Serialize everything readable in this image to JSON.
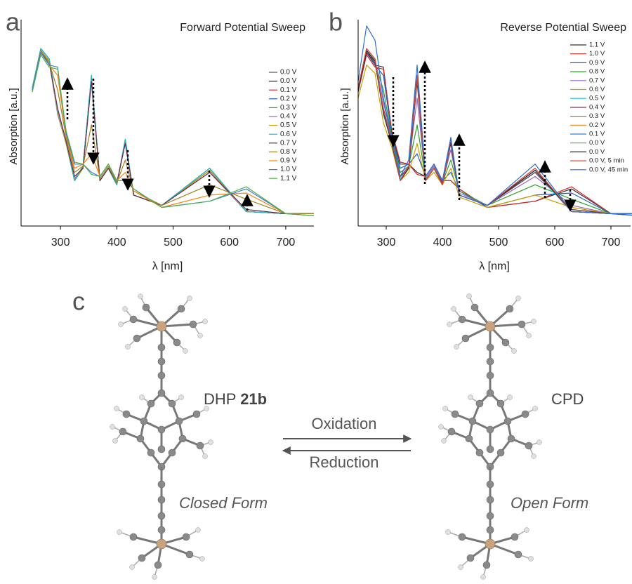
{
  "chart_data": [
    {
      "type": "line",
      "panel_label": "a",
      "title": "Forward Potential Sweep",
      "xlabel": "λ [nm]",
      "ylabel": "Absorption [a.u.]",
      "xlim": [
        230,
        750
      ],
      "ylim": [
        0,
        1
      ],
      "xticks": [
        300,
        400,
        500,
        600,
        700
      ],
      "x": [
        250,
        265,
        280,
        295,
        310,
        325,
        340,
        355,
        370,
        385,
        400,
        415,
        430,
        480,
        565,
        630,
        700,
        750
      ],
      "series": [
        {
          "name": "0.0 V",
          "color": "#555555",
          "values": [
            0.66,
            0.85,
            0.8,
            0.55,
            0.4,
            0.22,
            0.28,
            0.72,
            0.22,
            0.28,
            0.2,
            0.41,
            0.15,
            0.1,
            0.27,
            0.07,
            0.06,
            0.06
          ]
        },
        {
          "name": "0.0 V",
          "color": "#222222",
          "values": [
            0.67,
            0.86,
            0.81,
            0.56,
            0.41,
            0.22,
            0.29,
            0.73,
            0.22,
            0.28,
            0.2,
            0.42,
            0.15,
            0.1,
            0.28,
            0.07,
            0.06,
            0.06
          ]
        },
        {
          "name": "0.1 V",
          "color": "#d62728",
          "values": [
            0.66,
            0.85,
            0.8,
            0.55,
            0.4,
            0.22,
            0.28,
            0.72,
            0.22,
            0.28,
            0.2,
            0.41,
            0.15,
            0.1,
            0.27,
            0.07,
            0.06,
            0.06
          ]
        },
        {
          "name": "0.2 V",
          "color": "#1f5fbf",
          "values": [
            0.66,
            0.85,
            0.8,
            0.55,
            0.4,
            0.22,
            0.28,
            0.72,
            0.22,
            0.28,
            0.2,
            0.41,
            0.15,
            0.1,
            0.27,
            0.07,
            0.06,
            0.06
          ]
        },
        {
          "name": "0.3 V",
          "color": "#2ca02c",
          "values": [
            0.66,
            0.85,
            0.8,
            0.55,
            0.4,
            0.22,
            0.28,
            0.72,
            0.22,
            0.28,
            0.2,
            0.41,
            0.15,
            0.1,
            0.27,
            0.07,
            0.06,
            0.06
          ]
        },
        {
          "name": "0.4 V",
          "color": "#9467bd",
          "values": [
            0.65,
            0.85,
            0.8,
            0.54,
            0.4,
            0.23,
            0.28,
            0.71,
            0.22,
            0.28,
            0.21,
            0.4,
            0.15,
            0.1,
            0.26,
            0.07,
            0.06,
            0.06
          ]
        },
        {
          "name": "0.5 V",
          "color": "#c8a000",
          "values": [
            0.66,
            0.85,
            0.8,
            0.55,
            0.4,
            0.22,
            0.28,
            0.72,
            0.22,
            0.28,
            0.2,
            0.41,
            0.15,
            0.1,
            0.27,
            0.07,
            0.06,
            0.06
          ]
        },
        {
          "name": "0.6 V",
          "color": "#17becf",
          "values": [
            0.67,
            0.86,
            0.81,
            0.56,
            0.41,
            0.22,
            0.29,
            0.73,
            0.22,
            0.28,
            0.2,
            0.42,
            0.15,
            0.1,
            0.28,
            0.07,
            0.06,
            0.06
          ]
        },
        {
          "name": "0.7 V",
          "color": "#6b2d4f",
          "values": [
            0.65,
            0.84,
            0.79,
            0.57,
            0.41,
            0.24,
            0.28,
            0.7,
            0.22,
            0.28,
            0.21,
            0.4,
            0.15,
            0.1,
            0.26,
            0.08,
            0.06,
            0.06
          ]
        },
        {
          "name": "0.8 V",
          "color": "#a08020",
          "values": [
            0.66,
            0.85,
            0.79,
            0.66,
            0.43,
            0.26,
            0.29,
            0.49,
            0.23,
            0.29,
            0.21,
            0.32,
            0.17,
            0.1,
            0.2,
            0.13,
            0.06,
            0.06
          ]
        },
        {
          "name": "0.9 V",
          "color": "#ff7f0e",
          "values": [
            0.66,
            0.84,
            0.78,
            0.73,
            0.44,
            0.28,
            0.3,
            0.35,
            0.24,
            0.3,
            0.22,
            0.26,
            0.17,
            0.09,
            0.15,
            0.16,
            0.06,
            0.05
          ]
        },
        {
          "name": "1.0 V",
          "color": "#3a7bd5",
          "values": [
            0.66,
            0.84,
            0.78,
            0.77,
            0.45,
            0.3,
            0.3,
            0.26,
            0.24,
            0.3,
            0.22,
            0.22,
            0.18,
            0.09,
            0.12,
            0.18,
            0.06,
            0.05
          ]
        },
        {
          "name": "1.1 V",
          "color": "#4caf50",
          "values": [
            0.65,
            0.83,
            0.77,
            0.76,
            0.46,
            0.31,
            0.3,
            0.25,
            0.24,
            0.3,
            0.22,
            0.22,
            0.18,
            0.09,
            0.12,
            0.19,
            0.06,
            0.05
          ]
        }
      ]
    },
    {
      "type": "line",
      "panel_label": "b",
      "title": "Reverse Potential Sweep",
      "xlabel": "λ [nm]",
      "ylabel": "Absorption [a.u.]",
      "xlim": [
        250,
        735
      ],
      "ylim": [
        0,
        1
      ],
      "xticks": [
        300,
        400,
        500,
        600,
        700
      ],
      "x": [
        250,
        265,
        280,
        295,
        310,
        325,
        340,
        355,
        370,
        385,
        400,
        415,
        430,
        480,
        565,
        630,
        700,
        750
      ],
      "series": [
        {
          "name": "1.1 V",
          "color": "#333333",
          "values": [
            0.66,
            0.84,
            0.78,
            0.77,
            0.45,
            0.3,
            0.3,
            0.26,
            0.24,
            0.3,
            0.22,
            0.22,
            0.18,
            0.09,
            0.12,
            0.18,
            0.06,
            0.05
          ]
        },
        {
          "name": "1.0 V",
          "color": "#d62728",
          "values": [
            0.65,
            0.83,
            0.77,
            0.76,
            0.46,
            0.31,
            0.3,
            0.25,
            0.24,
            0.3,
            0.22,
            0.22,
            0.18,
            0.09,
            0.12,
            0.19,
            0.06,
            0.05
          ]
        },
        {
          "name": "0.9 V",
          "color": "#1f5fbf",
          "values": [
            0.66,
            0.84,
            0.78,
            0.73,
            0.44,
            0.28,
            0.3,
            0.35,
            0.24,
            0.3,
            0.22,
            0.26,
            0.17,
            0.09,
            0.15,
            0.16,
            0.06,
            0.05
          ]
        },
        {
          "name": "0.8 V",
          "color": "#2ca02c",
          "values": [
            0.66,
            0.85,
            0.79,
            0.66,
            0.43,
            0.26,
            0.29,
            0.49,
            0.23,
            0.29,
            0.21,
            0.32,
            0.17,
            0.1,
            0.2,
            0.13,
            0.06,
            0.06
          ]
        },
        {
          "name": "0.7 V",
          "color": "#9467bd",
          "values": [
            0.66,
            0.86,
            0.81,
            0.6,
            0.42,
            0.24,
            0.29,
            0.62,
            0.23,
            0.29,
            0.21,
            0.37,
            0.16,
            0.1,
            0.24,
            0.1,
            0.06,
            0.06
          ]
        },
        {
          "name": "0.6 V",
          "color": "#c8a000",
          "values": [
            0.62,
            0.78,
            0.74,
            0.5,
            0.38,
            0.22,
            0.26,
            0.4,
            0.22,
            0.26,
            0.2,
            0.28,
            0.14,
            0.09,
            0.15,
            0.09,
            0.06,
            0.06
          ]
        },
        {
          "name": "0.5 V",
          "color": "#17becf",
          "values": [
            0.65,
            0.85,
            0.8,
            0.54,
            0.4,
            0.23,
            0.28,
            0.71,
            0.22,
            0.28,
            0.21,
            0.4,
            0.15,
            0.1,
            0.26,
            0.07,
            0.06,
            0.06
          ]
        },
        {
          "name": "0.4 V",
          "color": "#6b2d4f",
          "values": [
            0.65,
            0.84,
            0.79,
            0.57,
            0.41,
            0.24,
            0.28,
            0.7,
            0.22,
            0.28,
            0.21,
            0.4,
            0.15,
            0.1,
            0.26,
            0.08,
            0.06,
            0.06
          ]
        },
        {
          "name": "0.3 V",
          "color": "#a08020",
          "values": [
            0.66,
            0.85,
            0.8,
            0.55,
            0.4,
            0.22,
            0.28,
            0.72,
            0.22,
            0.28,
            0.2,
            0.41,
            0.15,
            0.1,
            0.27,
            0.07,
            0.06,
            0.06
          ]
        },
        {
          "name": "0.2 V",
          "color": "#ff7f0e",
          "values": [
            0.67,
            0.86,
            0.81,
            0.56,
            0.41,
            0.22,
            0.29,
            0.73,
            0.22,
            0.28,
            0.2,
            0.42,
            0.15,
            0.1,
            0.28,
            0.07,
            0.06,
            0.06
          ]
        },
        {
          "name": "0.1 V",
          "color": "#3a7bd5",
          "values": [
            0.66,
            0.85,
            0.8,
            0.55,
            0.4,
            0.22,
            0.28,
            0.72,
            0.22,
            0.28,
            0.2,
            0.41,
            0.15,
            0.1,
            0.27,
            0.07,
            0.06,
            0.06
          ]
        },
        {
          "name": "0.0 V",
          "color": "#4caf50",
          "values": [
            0.67,
            0.86,
            0.81,
            0.56,
            0.41,
            0.22,
            0.29,
            0.73,
            0.22,
            0.28,
            0.2,
            0.42,
            0.15,
            0.1,
            0.28,
            0.07,
            0.06,
            0.06
          ]
        },
        {
          "name": "0.0 V",
          "color": "#222222",
          "values": [
            0.66,
            0.85,
            0.8,
            0.55,
            0.4,
            0.22,
            0.28,
            0.72,
            0.22,
            0.28,
            0.2,
            0.41,
            0.15,
            0.1,
            0.27,
            0.07,
            0.06,
            0.06
          ]
        },
        {
          "name": "0.0 V, 5 min",
          "color": "#e0453a",
          "values": [
            0.67,
            0.86,
            0.81,
            0.56,
            0.41,
            0.22,
            0.29,
            0.73,
            0.22,
            0.28,
            0.2,
            0.42,
            0.15,
            0.1,
            0.28,
            0.07,
            0.06,
            0.06
          ]
        },
        {
          "name": "0.0 V, 45 min",
          "color": "#2a6fd6",
          "values": [
            0.7,
            0.97,
            0.9,
            0.62,
            0.42,
            0.24,
            0.32,
            0.78,
            0.24,
            0.3,
            0.22,
            0.43,
            0.15,
            0.1,
            0.3,
            0.07,
            0.06,
            0.06
          ]
        }
      ]
    }
  ],
  "diagram": {
    "panel_label": "c",
    "left": {
      "name": "DHP",
      "name_bold": "21b",
      "form": "Closed Form"
    },
    "right": {
      "name": "CPD",
      "form": "Open Form"
    },
    "forward": "Oxidation",
    "reverse": "Reduction"
  }
}
